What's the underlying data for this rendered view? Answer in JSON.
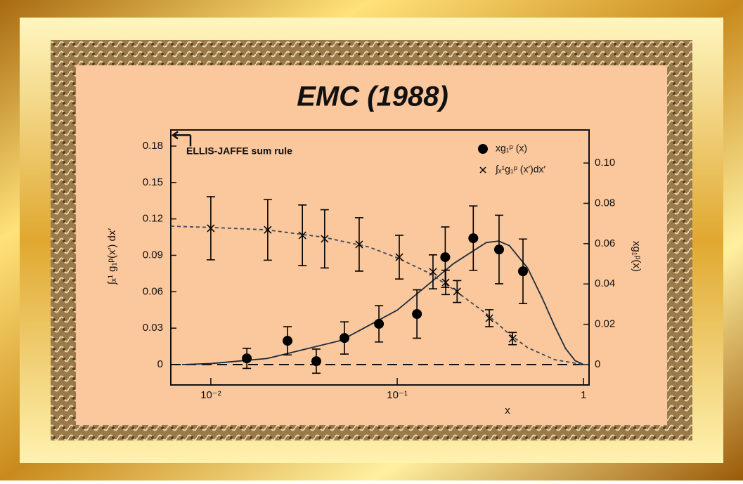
{
  "chart_data": {
    "type": "scatter",
    "title": "EMC (1988)",
    "x_label": "x",
    "y_label": "∫ₓ¹ g₁ᵖ(x′) dx′",
    "y2_label": "xg₁ᵖ(x)",
    "log_x": true,
    "xlim": [
      0.0061,
      1.07
    ],
    "xticks": [
      {
        "value": 0.01,
        "label": "10⁻²"
      },
      {
        "value": 0.1,
        "label": "10⁻¹"
      },
      1
    ],
    "ylim": [
      -0.0168,
      0.1933
    ],
    "yticks": [
      0,
      0.03,
      0.06,
      0.09,
      0.12,
      0.15,
      0.18
    ],
    "y2lim": [
      -0.0101,
      0.1164
    ],
    "y2ticks": [
      0,
      0.02,
      0.04,
      0.06,
      0.08,
      {
        "value": 0.1,
        "label": "0.10"
      }
    ],
    "annotation": {
      "text": "ELLIS-JAFFE sum rule",
      "value": 0.189
    },
    "series": [
      {
        "name": "xg₁ᵖ (x)",
        "marker": "circle",
        "axis": "y2",
        "color": "#000000",
        "x": [
          0.0156,
          0.0258,
          0.0368,
          0.0521,
          0.0798,
          0.1276,
          0.181,
          0.256,
          0.352,
          0.473
        ],
        "values": [
          0.0031,
          0.0118,
          0.0017,
          0.0132,
          0.0202,
          0.0251,
          0.0533,
          0.0627,
          0.0571,
          0.0463
        ],
        "errors": [
          0.005,
          0.007,
          0.006,
          0.008,
          0.009,
          0.012,
          0.015,
          0.016,
          0.017,
          0.016
        ]
      },
      {
        "name": "∫ₓ¹g₁ᵖ (x′)dx′",
        "marker": "cross",
        "axis": "y",
        "color": "#000000",
        "x": [
          0.01,
          0.0202,
          0.031,
          0.0408,
          0.0625,
          0.1026,
          0.1556,
          0.182,
          0.2096,
          0.312,
          0.416
        ],
        "values": [
          0.1123,
          0.111,
          0.1065,
          0.1036,
          0.099,
          0.0885,
          0.0764,
          0.0677,
          0.0602,
          0.0382,
          0.0214
        ],
        "errors": [
          0.026,
          0.025,
          0.025,
          0.024,
          0.022,
          0.018,
          0.014,
          0.01,
          0.009,
          0.007,
          0.005
        ]
      }
    ],
    "curves": [
      {
        "axis": "y2",
        "style": "solid",
        "color": "#1a2a3a",
        "x": [
          0.007,
          0.01,
          0.02,
          0.05,
          0.1,
          0.2,
          0.3,
          0.35,
          0.4,
          0.5,
          0.6,
          0.7,
          0.8,
          0.9,
          1
        ],
        "values": [
          0,
          0.0005,
          0.003,
          0.012,
          0.027,
          0.05,
          0.0605,
          0.0613,
          0.059,
          0.048,
          0.033,
          0.019,
          0.008,
          0.002,
          0
        ]
      },
      {
        "axis": "y",
        "style": "dashed",
        "color": "#3a4a5a",
        "x": [
          0.0061,
          0.01,
          0.02,
          0.04,
          0.07,
          0.1,
          0.15,
          0.2,
          0.3,
          0.4,
          0.5,
          0.7,
          1
        ],
        "values": [
          0.114,
          0.113,
          0.111,
          0.105,
          0.097,
          0.088,
          0.075,
          0.062,
          0.042,
          0.025,
          0.014,
          0.004,
          0
        ]
      }
    ]
  }
}
